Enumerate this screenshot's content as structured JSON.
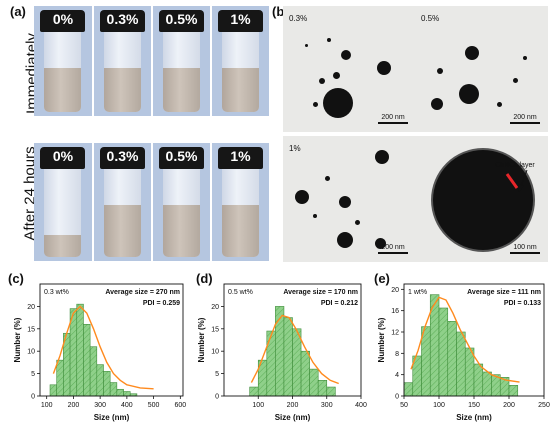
{
  "panels": {
    "a": "(a)",
    "b": "(b)",
    "c": "(c)",
    "d": "(d)",
    "e": "(e)"
  },
  "panel_a": {
    "row_labels": [
      "Immediately",
      "After 24 hours"
    ],
    "concentrations": [
      "0%",
      "0.3%",
      "0.5%",
      "1%"
    ]
  },
  "panel_b": {
    "concentrations": [
      "0.3%",
      "0.5%",
      "1%"
    ],
    "scale_bars": [
      "200 nm",
      "200 nm",
      "200 nm",
      "100 nm"
    ],
    "annotation": "ChNCs layer"
  },
  "colors": {
    "bar_fill": "#8fd08a",
    "bar_hatch": "#5cae57",
    "fit_line": "#ff8a1e",
    "vial_background": "#b5c6e0",
    "tem_background": "#e9e9e7"
  },
  "chart_data": [
    {
      "type": "bar",
      "conc_label": "0.3 wt%",
      "avg_label": "Average size = 270 nm",
      "pdi_label": "PDI = 0.259",
      "xlabel": "Size (nm)",
      "ylabel": "Number (%)",
      "xlim": [
        75,
        610
      ],
      "ylim": [
        0,
        25
      ],
      "xticks": [
        100,
        200,
        300,
        400,
        500,
        600
      ],
      "yticks": [
        0,
        5,
        10,
        15,
        20
      ],
      "bin_width": 25,
      "bins": [
        125,
        150,
        175,
        200,
        225,
        250,
        275,
        300,
        325,
        350,
        375,
        400,
        425
      ],
      "values": [
        2.5,
        8,
        14,
        19.5,
        20.5,
        16,
        11,
        7,
        5.5,
        3,
        1.5,
        1,
        0.5
      ],
      "fit_curve": [
        [
          125,
          5
        ],
        [
          150,
          9
        ],
        [
          175,
          14
        ],
        [
          200,
          18.5
        ],
        [
          225,
          20
        ],
        [
          250,
          18.5
        ],
        [
          275,
          15
        ],
        [
          300,
          11
        ],
        [
          325,
          7.5
        ],
        [
          350,
          5
        ],
        [
          375,
          3.5
        ],
        [
          400,
          2.5
        ],
        [
          450,
          1.8
        ],
        [
          500,
          1.6
        ]
      ]
    },
    {
      "type": "bar",
      "conc_label": "0.5 wt%",
      "avg_label": "Average size = 170 nm",
      "pdi_label": "PDI = 0.212",
      "xlabel": "Size (nm)",
      "ylabel": "Number (%)",
      "xlim": [
        0,
        400
      ],
      "ylim": [
        0,
        25
      ],
      "xticks": [
        100,
        200,
        300,
        400
      ],
      "yticks": [
        0,
        5,
        10,
        15,
        20
      ],
      "bin_width": 25,
      "bins": [
        87.5,
        112.5,
        137.5,
        162.5,
        187.5,
        212.5,
        237.5,
        262.5,
        287.5,
        312.5
      ],
      "values": [
        2,
        8,
        14.5,
        20,
        17.5,
        15,
        10,
        6,
        3.5,
        2
      ],
      "fit_curve": [
        [
          80,
          3
        ],
        [
          100,
          6
        ],
        [
          125,
          11
        ],
        [
          150,
          16
        ],
        [
          170,
          18
        ],
        [
          190,
          17.5
        ],
        [
          210,
          15
        ],
        [
          235,
          11
        ],
        [
          260,
          7.5
        ],
        [
          285,
          5
        ],
        [
          310,
          3.5
        ],
        [
          335,
          2.8
        ]
      ]
    },
    {
      "type": "bar",
      "conc_label": "1 wt%",
      "avg_label": "Average size = 111 nm",
      "pdi_label": "PDI = 0.133",
      "xlabel": "Size (nm)",
      "ylabel": "Number (%)",
      "xlim": [
        50,
        250
      ],
      "ylim": [
        0,
        21
      ],
      "xticks": [
        50,
        100,
        150,
        200,
        250
      ],
      "yticks": [
        0,
        4,
        8,
        12,
        16,
        20
      ],
      "bin_width": 12.5,
      "bins": [
        56.25,
        68.75,
        81.25,
        93.75,
        106.25,
        118.75,
        131.25,
        143.75,
        156.25,
        168.75,
        181.25,
        193.75,
        206.25
      ],
      "values": [
        2.5,
        7.5,
        13,
        19,
        16.5,
        14,
        12,
        9,
        6,
        4.5,
        4,
        3.5,
        2
      ],
      "fit_curve": [
        [
          60,
          5
        ],
        [
          70,
          8.5
        ],
        [
          80,
          13
        ],
        [
          90,
          16.5
        ],
        [
          100,
          18.5
        ],
        [
          110,
          18
        ],
        [
          120,
          15.5
        ],
        [
          130,
          12.5
        ],
        [
          140,
          10
        ],
        [
          150,
          7.5
        ],
        [
          160,
          5.5
        ],
        [
          175,
          4
        ],
        [
          195,
          3
        ],
        [
          215,
          2.6
        ]
      ]
    }
  ]
}
